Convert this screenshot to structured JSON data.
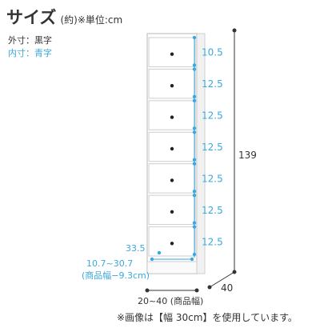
{
  "title": {
    "main": "サイズ",
    "sub": "(約)※単位:cm"
  },
  "legend": {
    "outer": "外寸：黒字",
    "inner": "内寸：青字"
  },
  "colors": {
    "outer": "#333333",
    "inner": "#39a9dd",
    "cabinet_edge": "#cfcfcf"
  },
  "dimensions": {
    "height": "139",
    "depth": "40",
    "width": "20~40 (商品幅)",
    "drawers_inner": [
      "10.5",
      "12.5",
      "12.5",
      "12.5",
      "12.5",
      "12.5",
      "12.5"
    ],
    "bottom_inner_height": "33.5",
    "bottom_inner_width": "10.7~30.7",
    "bottom_inner_width_note": "(商品幅−9.3cm)"
  },
  "footnote": "※画像は【幅 30cm】を使用しています。"
}
